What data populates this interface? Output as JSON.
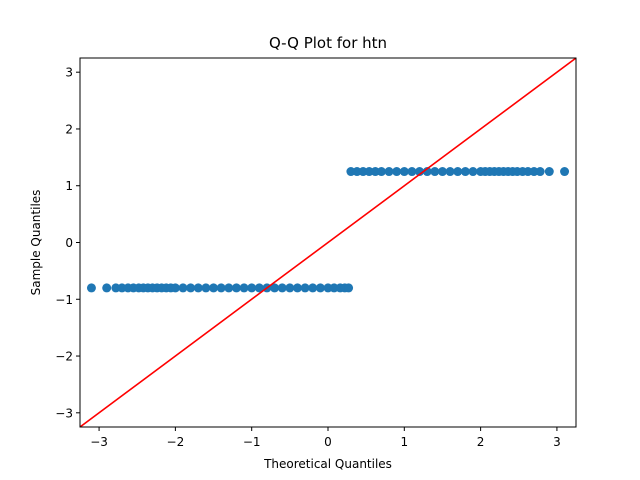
{
  "chart_data": {
    "type": "scatter",
    "title": "Q-Q Plot for htn",
    "xlabel": "Theoretical Quantiles",
    "ylabel": "Sample Quantiles",
    "xlim": [
      -3.25,
      3.25
    ],
    "ylim": [
      -3.25,
      3.25
    ],
    "xticks": [
      -3,
      -2,
      -1,
      0,
      1,
      2,
      3
    ],
    "yticks": [
      -3,
      -2,
      -1,
      0,
      1,
      2,
      3
    ],
    "grid": false,
    "legend": "none",
    "point_color": "#1f77b4",
    "line_color": "#ff0000",
    "series": [
      {
        "kind": "points",
        "y": -0.8,
        "x": [
          -3.1,
          -2.9,
          -2.78,
          -2.7,
          -2.62,
          -2.55,
          -2.48,
          -2.42,
          -2.36,
          -2.3,
          -2.24,
          -2.18,
          -2.12,
          -2.06,
          -2.0,
          -1.9,
          -1.8,
          -1.7,
          -1.6,
          -1.5,
          -1.4,
          -1.3,
          -1.2,
          -1.1,
          -1.0,
          -0.9,
          -0.8,
          -0.7,
          -0.6,
          -0.5,
          -0.4,
          -0.3,
          -0.2,
          -0.1,
          0.0,
          0.08,
          0.16,
          0.22,
          0.27
        ]
      },
      {
        "kind": "points",
        "y": 1.25,
        "x": [
          0.3,
          0.38,
          0.46,
          0.54,
          0.62,
          0.7,
          0.8,
          0.9,
          1.0,
          1.1,
          1.2,
          1.3,
          1.4,
          1.5,
          1.6,
          1.7,
          1.8,
          1.9,
          2.0,
          2.06,
          2.12,
          2.18,
          2.24,
          2.3,
          2.36,
          2.42,
          2.48,
          2.55,
          2.62,
          2.7,
          2.78,
          2.9,
          3.1
        ]
      },
      {
        "kind": "reference-line",
        "x": [
          -3.25,
          3.25
        ],
        "y": [
          -3.25,
          3.25
        ]
      }
    ]
  }
}
